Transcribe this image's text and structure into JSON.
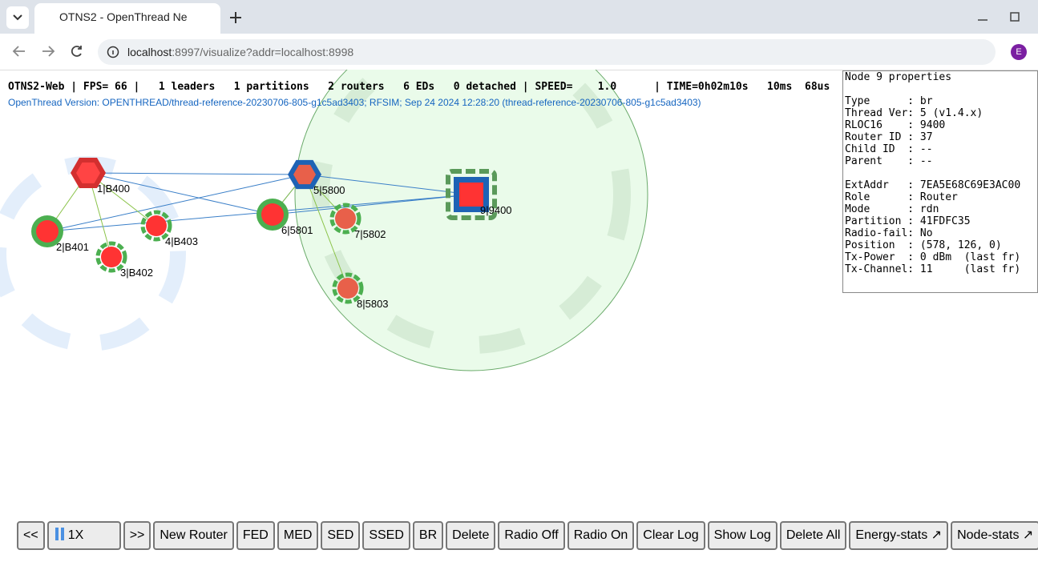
{
  "browser": {
    "tab_title": "OTNS2 - OpenThread Ne",
    "url_host": "localhost",
    "url_rest": ":8997/visualize?addr=localhost:8998",
    "avatar": "E"
  },
  "status": {
    "line": "OTNS2-Web | FPS= 66 |   1 leaders   1 partitions   2 routers   6 EDs   0 detached | SPEED=    1.0      | TIME=0h02m10s   10ms  68us",
    "version": "OpenThread Version: OPENTHREAD/thread-reference-20230706-805-g1c5ad3403; RFSIM; Sep 24 2024 12:28:20 (thread-reference-20230706-805-g1c5ad3403)"
  },
  "nodes": [
    {
      "label": "1|B400"
    },
    {
      "label": "2|B401"
    },
    {
      "label": "3|B402"
    },
    {
      "label": "4|B403"
    },
    {
      "label": "5|5800"
    },
    {
      "label": "6|5801"
    },
    {
      "label": "7|5802"
    },
    {
      "label": "8|5803"
    },
    {
      "label": "9|9400"
    }
  ],
  "panel": {
    "title": "Node 9 properties",
    "rows": [
      "Type      : br",
      "Thread Ver: 5 (v1.4.x)",
      "RLOC16    : 9400",
      "Router ID : 37",
      "Child ID  : --",
      "Parent    : --",
      "",
      "ExtAddr   : 7EA5E68C69E3AC00",
      "Role      : Router",
      "Mode      : rdn",
      "Partition : 41FDFC35",
      "Radio-fail: No",
      "Position  : (578, 126, 0)",
      "Tx-Power  : 0 dBm  (last fr)",
      "Tx-Channel: 11     (last fr)"
    ]
  },
  "buttons": [
    "<<",
    "1X",
    ">>",
    "New Router",
    "FED",
    "MED",
    "SED",
    "SSED",
    "BR",
    "Delete",
    "Radio Off",
    "Radio On",
    "Clear Log",
    "Show Log",
    "Delete All",
    "Energy-stats ↗",
    "Node-stats ↗"
  ]
}
